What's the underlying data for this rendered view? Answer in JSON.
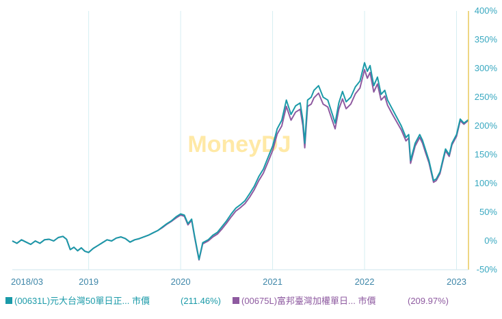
{
  "chart_data": {
    "type": "line",
    "watermark": "MoneyDJ",
    "x_ticks": [
      "2018/03",
      "2019",
      "2020",
      "2021",
      "2022",
      "2023"
    ],
    "x_tick_dates": [
      2018.17,
      2019.0,
      2020.0,
      2021.0,
      2022.0,
      2023.0
    ],
    "xlim": [
      2018.17,
      2023.13
    ],
    "y_axis_side": "right",
    "y_ticks": [
      "400%",
      "350%",
      "300%",
      "250%",
      "200%",
      "150%",
      "100%",
      "50%",
      "0%",
      "-50%"
    ],
    "ylim": [
      -50,
      400
    ],
    "grid": "vertical",
    "colors": {
      "series_1": "#1a9aa8",
      "series_2": "#8e5aa0",
      "y_axis": "#e8c85a",
      "grid": "#d6eef2",
      "axis_text": "#38a8c0"
    },
    "series": [
      {
        "name": "(00631L)元大台灣50單日正... 市價",
        "return_label": "(211.46%)",
        "color": "#1a9aa8",
        "points": [
          [
            2018.17,
            0
          ],
          [
            2018.22,
            -4
          ],
          [
            2018.27,
            2
          ],
          [
            2018.32,
            -2
          ],
          [
            2018.37,
            -6
          ],
          [
            2018.42,
            0
          ],
          [
            2018.47,
            -4
          ],
          [
            2018.52,
            2
          ],
          [
            2018.57,
            3
          ],
          [
            2018.62,
            0
          ],
          [
            2018.67,
            6
          ],
          [
            2018.72,
            8
          ],
          [
            2018.76,
            3
          ],
          [
            2018.8,
            -15
          ],
          [
            2018.84,
            -11
          ],
          [
            2018.88,
            -17
          ],
          [
            2018.92,
            -12
          ],
          [
            2018.96,
            -18
          ],
          [
            2019.0,
            -20
          ],
          [
            2019.05,
            -13
          ],
          [
            2019.1,
            -8
          ],
          [
            2019.15,
            -3
          ],
          [
            2019.2,
            2
          ],
          [
            2019.25,
            0
          ],
          [
            2019.3,
            5
          ],
          [
            2019.35,
            7
          ],
          [
            2019.4,
            4
          ],
          [
            2019.45,
            -2
          ],
          [
            2019.5,
            2
          ],
          [
            2019.55,
            4
          ],
          [
            2019.6,
            7
          ],
          [
            2019.65,
            10
          ],
          [
            2019.7,
            14
          ],
          [
            2019.75,
            18
          ],
          [
            2019.8,
            24
          ],
          [
            2019.85,
            30
          ],
          [
            2019.9,
            35
          ],
          [
            2019.95,
            42
          ],
          [
            2020.0,
            47
          ],
          [
            2020.04,
            45
          ],
          [
            2020.08,
            30
          ],
          [
            2020.12,
            38
          ],
          [
            2020.15,
            10
          ],
          [
            2020.18,
            -15
          ],
          [
            2020.2,
            -32
          ],
          [
            2020.24,
            -3
          ],
          [
            2020.3,
            2
          ],
          [
            2020.35,
            10
          ],
          [
            2020.4,
            15
          ],
          [
            2020.45,
            25
          ],
          [
            2020.5,
            35
          ],
          [
            2020.55,
            47
          ],
          [
            2020.6,
            57
          ],
          [
            2020.65,
            63
          ],
          [
            2020.7,
            70
          ],
          [
            2020.75,
            82
          ],
          [
            2020.8,
            95
          ],
          [
            2020.85,
            112
          ],
          [
            2020.9,
            125
          ],
          [
            2020.95,
            145
          ],
          [
            2021.0,
            165
          ],
          [
            2021.05,
            195
          ],
          [
            2021.1,
            210
          ],
          [
            2021.15,
            245
          ],
          [
            2021.2,
            220
          ],
          [
            2021.25,
            235
          ],
          [
            2021.3,
            240
          ],
          [
            2021.33,
            210
          ],
          [
            2021.35,
            170
          ],
          [
            2021.38,
            245
          ],
          [
            2021.42,
            250
          ],
          [
            2021.45,
            262
          ],
          [
            2021.5,
            270
          ],
          [
            2021.55,
            250
          ],
          [
            2021.6,
            245
          ],
          [
            2021.65,
            220
          ],
          [
            2021.68,
            205
          ],
          [
            2021.72,
            240
          ],
          [
            2021.76,
            260
          ],
          [
            2021.8,
            242
          ],
          [
            2021.85,
            250
          ],
          [
            2021.9,
            268
          ],
          [
            2021.95,
            278
          ],
          [
            2022.0,
            310
          ],
          [
            2022.03,
            295
          ],
          [
            2022.06,
            305
          ],
          [
            2022.1,
            270
          ],
          [
            2022.14,
            285
          ],
          [
            2022.18,
            255
          ],
          [
            2022.22,
            262
          ],
          [
            2022.25,
            245
          ],
          [
            2022.3,
            230
          ],
          [
            2022.35,
            215
          ],
          [
            2022.4,
            200
          ],
          [
            2022.45,
            180
          ],
          [
            2022.48,
            185
          ],
          [
            2022.5,
            140
          ],
          [
            2022.55,
            170
          ],
          [
            2022.6,
            185
          ],
          [
            2022.63,
            175
          ],
          [
            2022.66,
            160
          ],
          [
            2022.7,
            140
          ],
          [
            2022.75,
            105
          ],
          [
            2022.78,
            108
          ],
          [
            2022.82,
            120
          ],
          [
            2022.85,
            140
          ],
          [
            2022.88,
            160
          ],
          [
            2022.92,
            150
          ],
          [
            2022.95,
            170
          ],
          [
            2023.0,
            185
          ],
          [
            2023.04,
            212
          ],
          [
            2023.08,
            205
          ],
          [
            2023.13,
            211
          ]
        ]
      },
      {
        "name": "(00675L)富邦臺灣加權單日... 市價",
        "return_label": "(209.97%)",
        "color": "#8e5aa0",
        "points": [
          [
            2018.17,
            0
          ],
          [
            2018.22,
            -4
          ],
          [
            2018.27,
            2
          ],
          [
            2018.32,
            -2
          ],
          [
            2018.37,
            -6
          ],
          [
            2018.42,
            0
          ],
          [
            2018.47,
            -4
          ],
          [
            2018.52,
            2
          ],
          [
            2018.57,
            3
          ],
          [
            2018.62,
            0
          ],
          [
            2018.67,
            6
          ],
          [
            2018.72,
            8
          ],
          [
            2018.76,
            3
          ],
          [
            2018.8,
            -15
          ],
          [
            2018.84,
            -11
          ],
          [
            2018.88,
            -17
          ],
          [
            2018.92,
            -12
          ],
          [
            2018.96,
            -18
          ],
          [
            2019.0,
            -20
          ],
          [
            2019.05,
            -13
          ],
          [
            2019.1,
            -8
          ],
          [
            2019.15,
            -3
          ],
          [
            2019.2,
            2
          ],
          [
            2019.25,
            0
          ],
          [
            2019.3,
            5
          ],
          [
            2019.35,
            7
          ],
          [
            2019.4,
            4
          ],
          [
            2019.45,
            -2
          ],
          [
            2019.5,
            2
          ],
          [
            2019.55,
            4
          ],
          [
            2019.6,
            7
          ],
          [
            2019.65,
            10
          ],
          [
            2019.7,
            14
          ],
          [
            2019.75,
            18
          ],
          [
            2019.8,
            23
          ],
          [
            2019.85,
            29
          ],
          [
            2019.9,
            34
          ],
          [
            2019.95,
            40
          ],
          [
            2020.0,
            45
          ],
          [
            2020.04,
            43
          ],
          [
            2020.08,
            28
          ],
          [
            2020.12,
            36
          ],
          [
            2020.15,
            8
          ],
          [
            2020.18,
            -17
          ],
          [
            2020.2,
            -33
          ],
          [
            2020.24,
            -5
          ],
          [
            2020.3,
            0
          ],
          [
            2020.35,
            7
          ],
          [
            2020.4,
            12
          ],
          [
            2020.45,
            21
          ],
          [
            2020.5,
            31
          ],
          [
            2020.55,
            42
          ],
          [
            2020.6,
            52
          ],
          [
            2020.65,
            58
          ],
          [
            2020.7,
            65
          ],
          [
            2020.75,
            76
          ],
          [
            2020.8,
            89
          ],
          [
            2020.85,
            105
          ],
          [
            2020.9,
            118
          ],
          [
            2020.95,
            137
          ],
          [
            2021.0,
            157
          ],
          [
            2021.05,
            186
          ],
          [
            2021.1,
            200
          ],
          [
            2021.15,
            234
          ],
          [
            2021.2,
            210
          ],
          [
            2021.25,
            224
          ],
          [
            2021.3,
            229
          ],
          [
            2021.33,
            200
          ],
          [
            2021.35,
            162
          ],
          [
            2021.38,
            234
          ],
          [
            2021.42,
            238
          ],
          [
            2021.45,
            249
          ],
          [
            2021.5,
            257
          ],
          [
            2021.55,
            238
          ],
          [
            2021.6,
            233
          ],
          [
            2021.65,
            209
          ],
          [
            2021.68,
            195
          ],
          [
            2021.72,
            229
          ],
          [
            2021.76,
            247
          ],
          [
            2021.8,
            230
          ],
          [
            2021.85,
            238
          ],
          [
            2021.9,
            256
          ],
          [
            2021.95,
            266
          ],
          [
            2022.0,
            298
          ],
          [
            2022.03,
            283
          ],
          [
            2022.06,
            293
          ],
          [
            2022.1,
            259
          ],
          [
            2022.14,
            273
          ],
          [
            2022.18,
            245
          ],
          [
            2022.22,
            252
          ],
          [
            2022.25,
            236
          ],
          [
            2022.3,
            221
          ],
          [
            2022.35,
            207
          ],
          [
            2022.4,
            193
          ],
          [
            2022.45,
            174
          ],
          [
            2022.48,
            179
          ],
          [
            2022.5,
            135
          ],
          [
            2022.55,
            165
          ],
          [
            2022.6,
            180
          ],
          [
            2022.63,
            170
          ],
          [
            2022.66,
            155
          ],
          [
            2022.7,
            136
          ],
          [
            2022.75,
            102
          ],
          [
            2022.78,
            105
          ],
          [
            2022.82,
            117
          ],
          [
            2022.85,
            137
          ],
          [
            2022.88,
            157
          ],
          [
            2022.92,
            147
          ],
          [
            2022.95,
            167
          ],
          [
            2023.0,
            182
          ],
          [
            2023.04,
            209
          ],
          [
            2023.08,
            203
          ],
          [
            2023.13,
            210
          ]
        ]
      }
    ]
  }
}
